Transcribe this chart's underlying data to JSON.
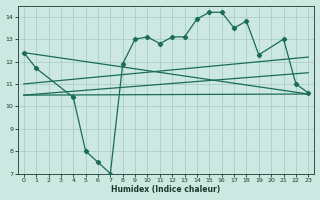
{
  "xlabel": "Humidex (Indice chaleur)",
  "bg_color": "#cce8e0",
  "grid_color": "#aacfc8",
  "line_color": "#1a6b58",
  "xlim": [
    -0.5,
    23.5
  ],
  "ylim": [
    7,
    14.5
  ],
  "xticks": [
    0,
    1,
    2,
    3,
    4,
    5,
    6,
    7,
    8,
    9,
    10,
    11,
    12,
    13,
    14,
    15,
    16,
    17,
    18,
    19,
    20,
    21,
    22,
    23
  ],
  "yticks": [
    7,
    8,
    9,
    10,
    11,
    12,
    13,
    14
  ],
  "curve1_x": [
    0,
    1,
    4,
    5,
    6,
    7,
    8,
    9,
    10,
    11,
    12,
    13,
    14,
    15,
    16,
    17,
    18,
    19,
    21,
    22,
    23
  ],
  "curve1_y": [
    12.4,
    11.7,
    10.4,
    8.0,
    7.5,
    7.0,
    11.9,
    13.0,
    13.1,
    12.8,
    13.1,
    13.1,
    13.9,
    14.2,
    14.2,
    13.5,
    13.8,
    12.3,
    13.0,
    11.0,
    10.6
  ],
  "line1_x": [
    0,
    23
  ],
  "line1_y": [
    12.4,
    10.55
  ],
  "line2_x": [
    0,
    23
  ],
  "line2_y": [
    11.0,
    12.2
  ],
  "line3_x": [
    0,
    23
  ],
  "line3_y": [
    10.5,
    10.55
  ],
  "line4_x": [
    0,
    23
  ],
  "line4_y": [
    10.5,
    11.5
  ]
}
